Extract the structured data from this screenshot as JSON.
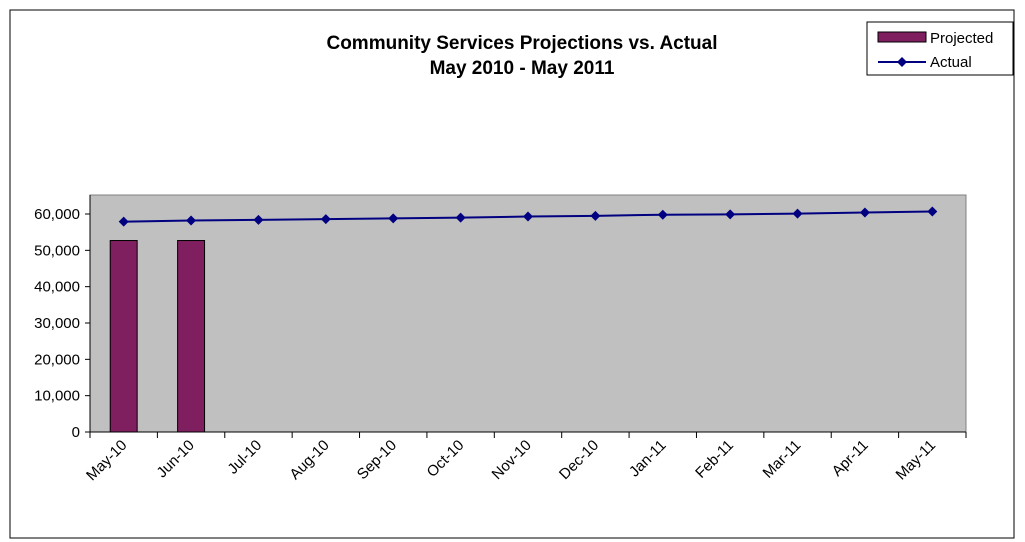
{
  "chart_data": {
    "type": "bar",
    "title": "Community Services Projections vs. Actual",
    "subtitle": "May 2010 - May 2011",
    "xlabel": "",
    "ylabel": "",
    "categories": [
      "May-10",
      "Jun-10",
      "Jul-10",
      "Aug-10",
      "Sep-10",
      "Oct-10",
      "Nov-10",
      "Dec-10",
      "Jan-11",
      "Feb-11",
      "Mar-11",
      "Apr-11",
      "May-11"
    ],
    "ylim": [
      0,
      60000
    ],
    "yticks": [
      0,
      10000,
      20000,
      30000,
      40000,
      50000,
      60000
    ],
    "ytick_labels": [
      "0",
      "10,000",
      "20,000",
      "30,000",
      "40,000",
      "50,000",
      "60,000"
    ],
    "grid": false,
    "legend_position": "top-right",
    "plot_background": "#c0c0c0",
    "series": [
      {
        "name": "Projected",
        "kind": "bar",
        "color": "#7f1f5f",
        "values": [
          52700,
          52700,
          null,
          null,
          null,
          null,
          null,
          null,
          null,
          null,
          null,
          null,
          null
        ]
      },
      {
        "name": "Actual",
        "kind": "line",
        "marker": "diamond",
        "color": "#000080",
        "values": [
          57900,
          58200,
          58400,
          58600,
          58800,
          59000,
          59300,
          59500,
          59800,
          59900,
          60100,
          60400,
          60700
        ]
      }
    ]
  }
}
